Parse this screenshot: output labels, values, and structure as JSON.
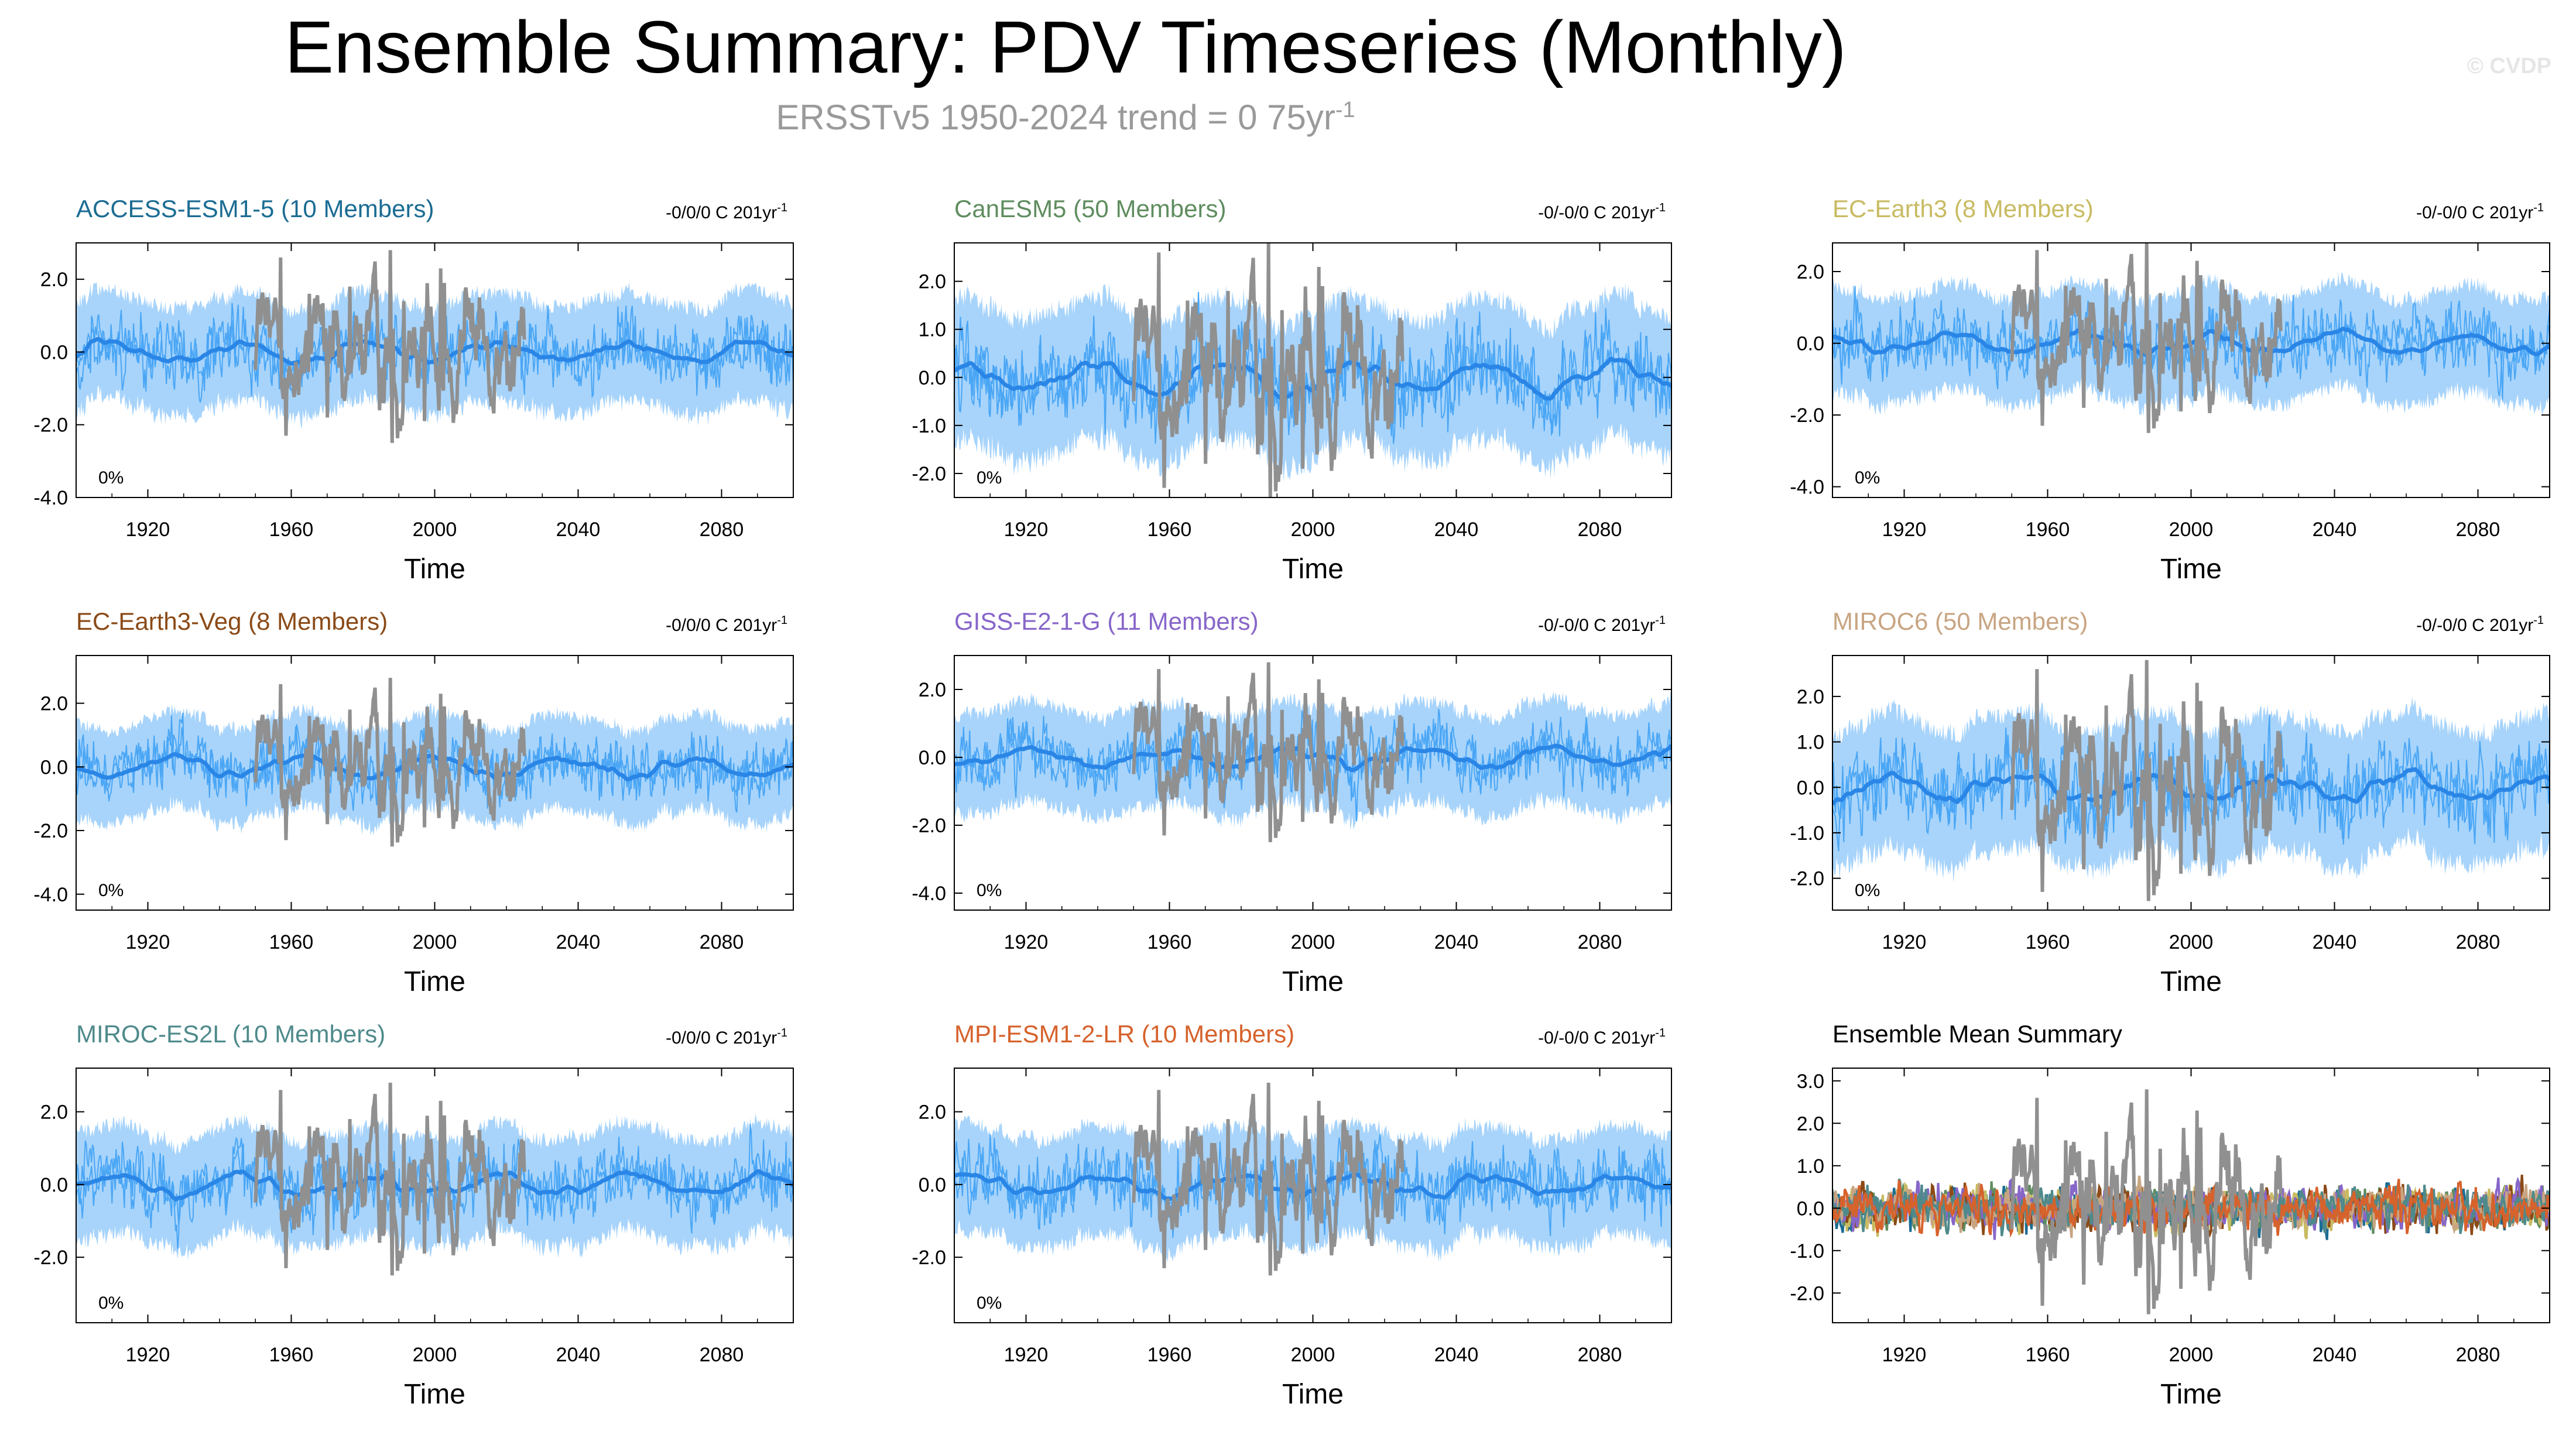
{
  "title": "Ensemble Summary: PDV Timeseries (Monthly)",
  "subtitle": "ERSSTv5 1950-2024 trend = 0 75yr",
  "subtitle_sup": "-1",
  "copyright": "© CVDP",
  "colors": {
    "ensemble_band": "#a8d4fb",
    "ensemble_member": "#4aa6f5",
    "ensemble_mean": "#2a86e6",
    "observations": "#909090"
  },
  "chart_data": [
    {
      "type": "line",
      "title": "ACCESS-ESM1-5 (10 Members)",
      "title_color": "#1b6c93",
      "trend_text": "-0/0/0 C 201yr",
      "trend_sup": "-1",
      "percent_label": "0%",
      "xlabel": "Time",
      "xlim": [
        1900,
        2100
      ],
      "ylim": [
        -4.0,
        3.0
      ],
      "yticks": [
        "2.0",
        "0.0",
        "-2.0",
        "-4.0"
      ],
      "xticks": [
        "1920",
        "1960",
        "2000",
        "2040",
        "2080"
      ],
      "series": [
        {
          "name": "ensemble members"
        },
        {
          "name": "ensemble mean"
        },
        {
          "name": "ERSSTv5 1950-2024"
        }
      ]
    },
    {
      "type": "line",
      "title": "CanESM5 (50 Members)",
      "title_color": "#5f8d5f",
      "trend_text": "-0/-0/0 C 201yr",
      "trend_sup": "-1",
      "percent_label": "0%",
      "xlabel": "Time",
      "xlim": [
        1900,
        2100
      ],
      "ylim": [
        -2.5,
        2.8
      ],
      "yticks": [
        "2.0",
        "1.0",
        "0.0",
        "-1.0",
        "-2.0"
      ],
      "xticks": [
        "1920",
        "1960",
        "2000",
        "2040",
        "2080"
      ],
      "series": [
        {
          "name": "ensemble members"
        },
        {
          "name": "ensemble mean"
        },
        {
          "name": "ERSSTv5 1950-2024"
        }
      ]
    },
    {
      "type": "line",
      "title": "EC-Earth3 (8 Members)",
      "title_color": "#c8bb62",
      "trend_text": "-0/-0/0 C 201yr",
      "trend_sup": "-1",
      "percent_label": "0%",
      "xlabel": "Time",
      "xlim": [
        1900,
        2100
      ],
      "ylim": [
        -4.3,
        2.8
      ],
      "yticks": [
        "2.0",
        "0.0",
        "-2.0",
        "-4.0"
      ],
      "xticks": [
        "1920",
        "1960",
        "2000",
        "2040",
        "2080"
      ],
      "series": [
        {
          "name": "ensemble members"
        },
        {
          "name": "ensemble mean"
        },
        {
          "name": "ERSSTv5 1950-2024"
        }
      ]
    },
    {
      "type": "line",
      "title": "EC-Earth3-Veg (8 Members)",
      "title_color": "#8b4a17",
      "trend_text": "-0/0/0 C 201yr",
      "trend_sup": "-1",
      "percent_label": "0%",
      "xlabel": "Time",
      "xlim": [
        1900,
        2100
      ],
      "ylim": [
        -4.5,
        3.5
      ],
      "yticks": [
        "2.0",
        "0.0",
        "-2.0",
        "-4.0"
      ],
      "xticks": [
        "1920",
        "1960",
        "2000",
        "2040",
        "2080"
      ],
      "series": [
        {
          "name": "ensemble members"
        },
        {
          "name": "ensemble mean"
        },
        {
          "name": "ERSSTv5 1950-2024"
        }
      ]
    },
    {
      "type": "line",
      "title": "GISS-E2-1-G (11 Members)",
      "title_color": "#8766c9",
      "trend_text": "-0/-0/0 C 201yr",
      "trend_sup": "-1",
      "percent_label": "0%",
      "xlabel": "Time",
      "xlim": [
        1900,
        2100
      ],
      "ylim": [
        -4.5,
        3.0
      ],
      "yticks": [
        "2.0",
        "0.0",
        "-2.0",
        "-4.0"
      ],
      "xticks": [
        "1920",
        "1960",
        "2000",
        "2040",
        "2080"
      ],
      "series": [
        {
          "name": "ensemble members"
        },
        {
          "name": "ensemble mean"
        },
        {
          "name": "ERSSTv5 1950-2024"
        }
      ]
    },
    {
      "type": "line",
      "title": "MIROC6 (50 Members)",
      "title_color": "#c8a582",
      "trend_text": "-0/-0/0 C 201yr",
      "trend_sup": "-1",
      "percent_label": "0%",
      "xlabel": "Time",
      "xlim": [
        1900,
        2100
      ],
      "ylim": [
        -2.7,
        2.9
      ],
      "yticks": [
        "2.0",
        "1.0",
        "0.0",
        "-1.0",
        "-2.0"
      ],
      "xticks": [
        "1920",
        "1960",
        "2000",
        "2040",
        "2080"
      ],
      "series": [
        {
          "name": "ensemble members"
        },
        {
          "name": "ensemble mean"
        },
        {
          "name": "ERSSTv5 1950-2024"
        }
      ]
    },
    {
      "type": "line",
      "title": "MIROC-ES2L (10 Members)",
      "title_color": "#4f8a8b",
      "trend_text": "-0/0/0 C 201yr",
      "trend_sup": "-1",
      "percent_label": "0%",
      "xlabel": "Time",
      "xlim": [
        1900,
        2100
      ],
      "ylim": [
        -3.8,
        3.2
      ],
      "yticks": [
        "2.0",
        "0.0",
        "-2.0"
      ],
      "xticks": [
        "1920",
        "1960",
        "2000",
        "2040",
        "2080"
      ],
      "series": [
        {
          "name": "ensemble members"
        },
        {
          "name": "ensemble mean"
        },
        {
          "name": "ERSSTv5 1950-2024"
        }
      ]
    },
    {
      "type": "line",
      "title": "MPI-ESM1-2-LR (10 Members)",
      "title_color": "#d6622c",
      "trend_text": "-0/-0/0 C 201yr",
      "trend_sup": "-1",
      "percent_label": "0%",
      "xlabel": "Time",
      "xlim": [
        1900,
        2100
      ],
      "ylim": [
        -3.8,
        3.2
      ],
      "yticks": [
        "2.0",
        "0.0",
        "-2.0"
      ],
      "xticks": [
        "1920",
        "1960",
        "2000",
        "2040",
        "2080"
      ],
      "series": [
        {
          "name": "ensemble members"
        },
        {
          "name": "ensemble mean"
        },
        {
          "name": "ERSSTv5 1950-2024"
        }
      ]
    },
    {
      "type": "line",
      "title": "Ensemble Mean Summary",
      "title_color": "#000000",
      "trend_text": "",
      "trend_sup": "",
      "percent_label": "",
      "xlabel": "Time",
      "xlim": [
        1900,
        2100
      ],
      "ylim": [
        -2.7,
        3.3
      ],
      "yticks": [
        "3.0",
        "2.0",
        "1.0",
        "0.0",
        "-1.0",
        "-2.0"
      ],
      "xticks": [
        "1920",
        "1960",
        "2000",
        "2040",
        "2080"
      ],
      "series": [
        {
          "name": "ACCESS-ESM1-5",
          "color": "#1b6c93"
        },
        {
          "name": "CanESM5",
          "color": "#5f8d5f"
        },
        {
          "name": "EC-Earth3",
          "color": "#c8bb62"
        },
        {
          "name": "EC-Earth3-Veg",
          "color": "#8b4a17"
        },
        {
          "name": "GISS-E2-1-G",
          "color": "#8766c9"
        },
        {
          "name": "MIROC6",
          "color": "#c8a582"
        },
        {
          "name": "MIROC-ES2L",
          "color": "#4f8a8b"
        },
        {
          "name": "MPI-ESM1-2-LR",
          "color": "#d6622c"
        },
        {
          "name": "ERSSTv5 1950-2024",
          "color": "#909090"
        }
      ]
    }
  ]
}
